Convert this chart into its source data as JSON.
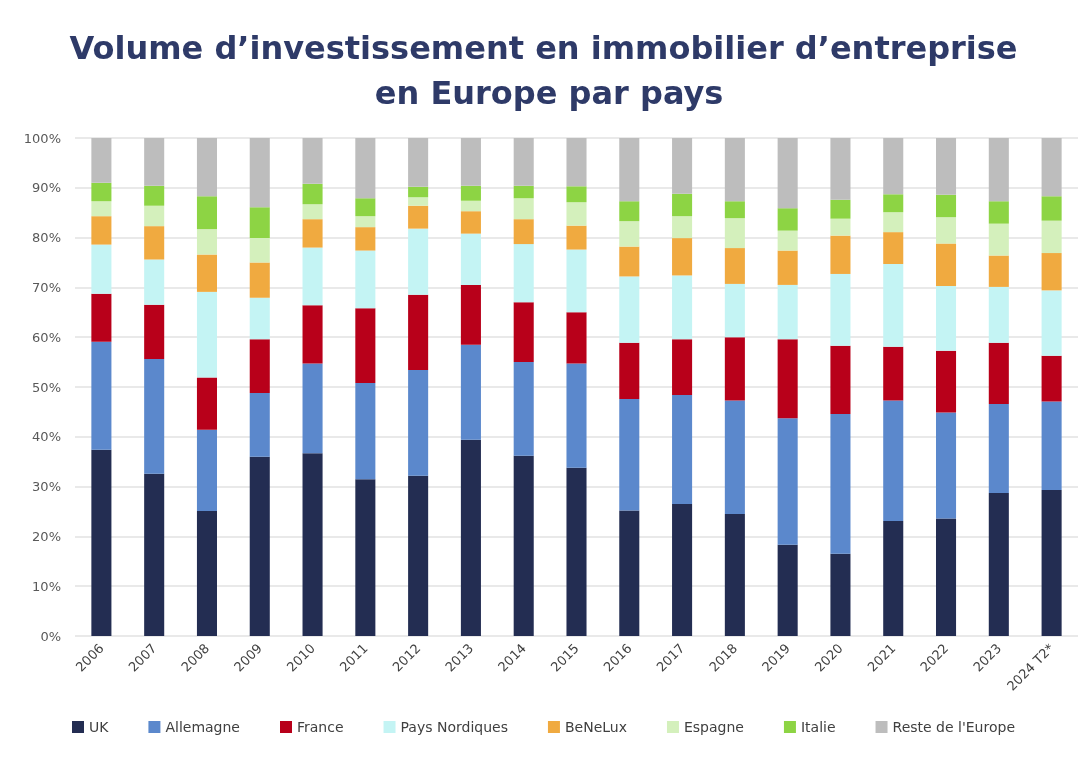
{
  "chart_data": {
    "type": "bar",
    "title": "Volume d’investissement en immobilier d’entreprise en Europe par pays",
    "categories": [
      "2006",
      "2007",
      "2008",
      "2009",
      "2010",
      "2011",
      "2012",
      "2013",
      "2014",
      "2015",
      "2016",
      "2017",
      "2018",
      "2019",
      "2020",
      "2021",
      "2022",
      "2023",
      "2024 T2*"
    ],
    "series": [
      {
        "name": "UK",
        "color": "#232d52",
        "values": [
          37.4,
          32.6,
          25.1,
          36.0,
          36.7,
          31.5,
          32.2,
          39.4,
          36.2,
          33.8,
          25.2,
          26.5,
          24.5,
          18.3,
          16.5,
          23.1,
          23.6,
          28.7,
          29.3
        ]
      },
      {
        "name": "Allemagne",
        "color": "#5b88cc",
        "values": [
          21.7,
          23.0,
          16.3,
          12.8,
          18.0,
          19.3,
          21.2,
          19.1,
          18.8,
          20.9,
          22.4,
          21.9,
          22.8,
          25.4,
          28.1,
          24.2,
          21.3,
          17.9,
          17.8
        ]
      },
      {
        "name": "France",
        "color": "#b8001a",
        "values": [
          9.6,
          10.9,
          10.5,
          10.8,
          11.7,
          15.0,
          15.1,
          12.0,
          12.0,
          10.3,
          11.3,
          11.2,
          12.7,
          15.9,
          13.7,
          10.8,
          12.4,
          12.3,
          9.2
        ]
      },
      {
        "name": "Pays Nordiques",
        "color": "#c4f4f4",
        "values": [
          9.9,
          9.1,
          17.2,
          8.3,
          11.6,
          11.6,
          13.3,
          10.3,
          11.7,
          12.6,
          13.3,
          12.8,
          10.7,
          10.9,
          14.4,
          16.6,
          13.0,
          11.2,
          13.1
        ]
      },
      {
        "name": "BeNeLux",
        "color": "#f0aa40",
        "values": [
          5.7,
          6.7,
          7.5,
          7.1,
          5.7,
          4.7,
          4.6,
          4.5,
          5.0,
          4.8,
          6.0,
          7.5,
          7.2,
          6.9,
          7.7,
          6.4,
          8.5,
          6.3,
          7.5
        ]
      },
      {
        "name": "Espagne",
        "color": "#d4f0bc",
        "values": [
          3.0,
          4.1,
          5.1,
          4.9,
          3.0,
          2.2,
          1.7,
          2.1,
          4.2,
          4.7,
          5.1,
          4.4,
          6.0,
          4.0,
          3.4,
          4.0,
          5.3,
          6.4,
          6.5
        ]
      },
      {
        "name": "Italie",
        "color": "#8dd444",
        "values": [
          3.7,
          4.0,
          6.6,
          6.2,
          4.1,
          3.6,
          2.1,
          3.0,
          2.5,
          3.2,
          4.0,
          4.5,
          3.4,
          4.5,
          3.8,
          3.6,
          4.5,
          4.5,
          4.9
        ]
      },
      {
        "name": "Reste de l'Europe",
        "color": "#bdbdbd",
        "values": [
          9.0,
          9.6,
          11.7,
          13.9,
          9.2,
          12.1,
          9.8,
          9.6,
          9.6,
          9.7,
          12.7,
          11.2,
          12.7,
          14.1,
          12.4,
          11.3,
          11.4,
          12.7,
          11.7
        ]
      }
    ],
    "stacked": true,
    "ylim": [
      0,
      100
    ],
    "yticks": [
      {
        "value": 0,
        "label": "0%"
      },
      {
        "value": 10,
        "label": "10%"
      },
      {
        "value": 20,
        "label": "20%"
      },
      {
        "value": 30,
        "label": "30%"
      },
      {
        "value": 40,
        "label": "40%"
      },
      {
        "value": 50,
        "label": "50%"
      },
      {
        "value": 60,
        "label": "60%"
      },
      {
        "value": 70,
        "label": "70%"
      },
      {
        "value": 80,
        "label": "80%"
      },
      {
        "value": 90,
        "label": "90%"
      },
      {
        "value": 100,
        "label": "100%"
      }
    ],
    "grid": "y",
    "legend": "bottom"
  }
}
